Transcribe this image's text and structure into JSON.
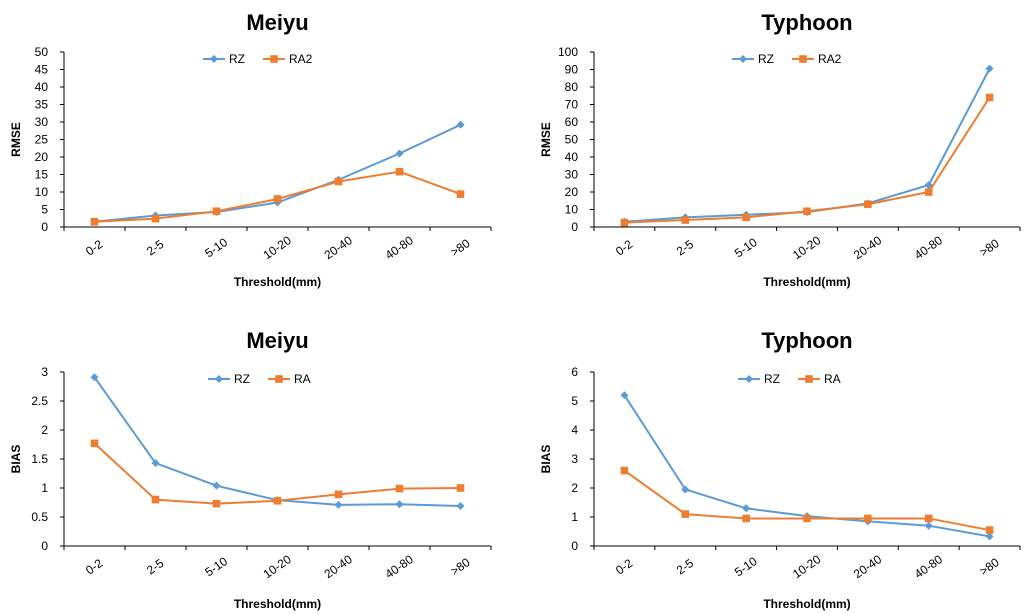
{
  "colors": {
    "series_blue": "#5b9bd5",
    "series_orange": "#ed7d31",
    "axis": "#000000"
  },
  "chart_data": [
    {
      "type": "line",
      "title": "Meiyu",
      "xlabel": "Threshold(mm)",
      "ylabel": "RMSE",
      "categories": [
        "0-2",
        "2-5",
        "5-10",
        "10-20",
        "20-40",
        "40-80",
        ">80"
      ],
      "ylim": [
        0,
        50
      ],
      "yticks": [
        "0",
        "5",
        "10",
        "15",
        "20",
        "25",
        "30",
        "35",
        "40",
        "45",
        "50"
      ],
      "grid": false,
      "legend": "top-center",
      "series": [
        {
          "name": "RZ",
          "color": "#5b9bd5",
          "marker": "diamond",
          "values": [
            1.5,
            3.3,
            4.3,
            7.0,
            13.5,
            21.0,
            29.2
          ]
        },
        {
          "name": "RA2",
          "color": "#ed7d31",
          "marker": "square",
          "values": [
            1.5,
            2.4,
            4.5,
            8.0,
            13.0,
            15.8,
            9.4
          ]
        }
      ]
    },
    {
      "type": "line",
      "title": "Typhoon",
      "xlabel": "Threshold(mm)",
      "ylabel": "RMSE",
      "categories": [
        "0-2",
        "2-5",
        "5-10",
        "10-20",
        "20-40",
        "40-80",
        ">80"
      ],
      "ylim": [
        0,
        100
      ],
      "yticks": [
        "0",
        "10",
        "20",
        "30",
        "40",
        "50",
        "60",
        "70",
        "80",
        "90",
        "100"
      ],
      "grid": false,
      "legend": "top-center",
      "series": [
        {
          "name": "RZ",
          "color": "#5b9bd5",
          "marker": "diamond",
          "values": [
            3.0,
            5.5,
            7.0,
            8.5,
            13.5,
            24.0,
            90.5
          ]
        },
        {
          "name": "RA2",
          "color": "#ed7d31",
          "marker": "square",
          "values": [
            2.5,
            4.0,
            5.5,
            9.0,
            13.0,
            20.0,
            74.0
          ]
        }
      ]
    },
    {
      "type": "line",
      "title": "Meiyu",
      "xlabel": "Threshold(mm)",
      "ylabel": "BIAS",
      "categories": [
        "0-2",
        "2-5",
        "5-10",
        "10-20",
        "20-40",
        "40-80",
        ">80"
      ],
      "ylim": [
        0,
        3
      ],
      "yticks": [
        "0",
        "0.5",
        "1",
        "1.5",
        "2",
        "2.5",
        "3"
      ],
      "grid": false,
      "legend": "top-center",
      "series": [
        {
          "name": "RZ",
          "color": "#5b9bd5",
          "marker": "diamond",
          "values": [
            2.91,
            1.43,
            1.04,
            0.79,
            0.71,
            0.72,
            0.69
          ]
        },
        {
          "name": "RA",
          "color": "#ed7d31",
          "marker": "square",
          "values": [
            1.77,
            0.8,
            0.73,
            0.78,
            0.89,
            0.99,
            1.0
          ]
        }
      ]
    },
    {
      "type": "line",
      "title": "Typhoon",
      "xlabel": "Threshold(mm)",
      "ylabel": "BIAS",
      "categories": [
        "0-2",
        "2-5",
        "5-10",
        "10-20",
        "20-40",
        "40-80",
        ">80"
      ],
      "ylim": [
        0,
        6
      ],
      "yticks": [
        "0",
        "1",
        "2",
        "3",
        "4",
        "5",
        "6"
      ],
      "grid": false,
      "legend": "top-center",
      "series": [
        {
          "name": "RZ",
          "color": "#5b9bd5",
          "marker": "diamond",
          "values": [
            5.2,
            1.95,
            1.3,
            1.03,
            0.85,
            0.7,
            0.33
          ]
        },
        {
          "name": "RA",
          "color": "#ed7d31",
          "marker": "square",
          "values": [
            2.6,
            1.1,
            0.95,
            0.95,
            0.95,
            0.95,
            0.55
          ]
        }
      ]
    }
  ]
}
